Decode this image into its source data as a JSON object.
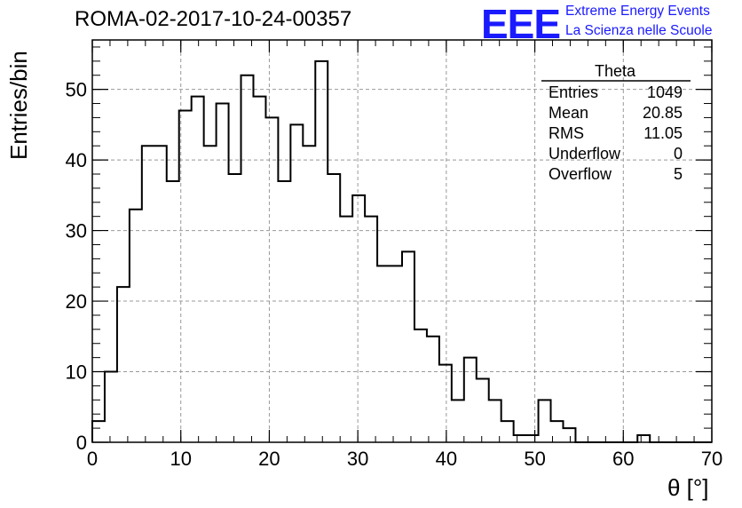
{
  "header": {
    "title": "ROMA-02-2017-10-24-00357",
    "logo_text": "EEE",
    "logo_line1": "Extreme Energy Events",
    "logo_line2": "La Scienza nelle Scuole"
  },
  "stats_box": {
    "title": "Theta",
    "rows": [
      {
        "label": "Entries",
        "value": "1049"
      },
      {
        "label": "Mean",
        "value": "20.85"
      },
      {
        "label": "RMS",
        "value": "11.05"
      },
      {
        "label": "Underflow",
        "value": "0"
      },
      {
        "label": "Overflow",
        "value": "5"
      }
    ]
  },
  "chart_data": {
    "type": "histogram",
    "xlabel": "θ [°]",
    "ylabel": "Entries/bin",
    "xlim": [
      0,
      70
    ],
    "ylim": [
      0,
      57
    ],
    "bin_width": 1.4,
    "xticks": [
      0,
      10,
      20,
      30,
      40,
      50,
      60,
      70
    ],
    "yticks": [
      0,
      10,
      20,
      30,
      40,
      50
    ],
    "grid": true,
    "values": [
      3,
      10,
      22,
      33,
      42,
      42,
      37,
      47,
      49,
      42,
      48,
      38,
      52,
      49,
      46,
      37,
      45,
      42,
      54,
      38,
      32,
      35,
      32,
      25,
      25,
      27,
      16,
      15,
      11,
      6,
      12,
      9,
      6,
      3,
      1,
      1,
      6,
      3,
      2,
      0,
      0,
      0,
      0,
      0,
      1,
      0,
      0,
      0,
      0,
      0
    ]
  }
}
